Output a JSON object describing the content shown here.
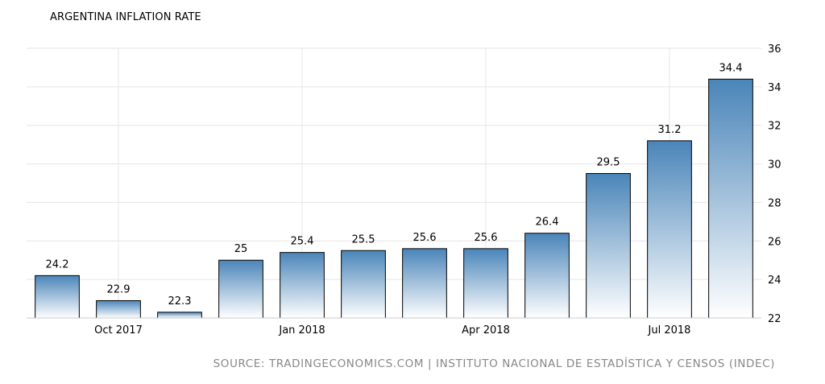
{
  "chart_data": {
    "type": "bar",
    "title": "ARGENTINA INFLATION RATE",
    "categories": [
      "Sep 2017",
      "Oct 2017",
      "Nov 2017",
      "Dec 2017",
      "Jan 2018",
      "Feb 2018",
      "Mar 2018",
      "Apr 2018",
      "May 2018",
      "Jun 2018",
      "Jul 2018",
      "Aug 2018"
    ],
    "values": [
      24.2,
      22.9,
      22.3,
      25,
      25.4,
      25.5,
      25.6,
      25.6,
      26.4,
      29.5,
      31.2,
      34.4
    ],
    "data_labels": [
      "24.2",
      "22.9",
      "22.3",
      "25",
      "25.4",
      "25.5",
      "25.6",
      "25.6",
      "26.4",
      "29.5",
      "31.2",
      "34.4"
    ],
    "x_tick_labels": [
      {
        "category": "Oct 2017",
        "label": "Oct 2017"
      },
      {
        "category": "Jan 2018",
        "label": "Jan 2018"
      },
      {
        "category": "Apr 2018",
        "label": "Apr 2018"
      },
      {
        "category": "Jul 2018",
        "label": "Jul 2018"
      }
    ],
    "y_ticks": [
      22,
      24,
      26,
      28,
      30,
      32,
      34,
      36
    ],
    "ylim": [
      22,
      36
    ],
    "y_axis_position": "right",
    "grid": true,
    "xlabel": "",
    "ylabel": "",
    "source": "SOURCE: TRADINGECONOMICS.COM | INSTITUTO NACIONAL DE ESTADÍSTICA Y CENSOS (INDEC)",
    "colors": {
      "bar_top": "#4a85b9",
      "bar_bottom": "#ffffff",
      "bar_stroke": "#000000",
      "grid": "#e6e6e6"
    }
  }
}
